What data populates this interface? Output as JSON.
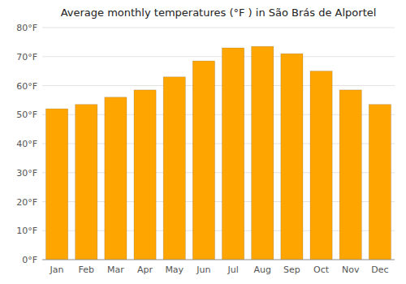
{
  "chart_data": {
    "type": "bar",
    "title": "Average monthly temperatures (°F ) in São Brás de Alportel",
    "categories": [
      "Jan",
      "Feb",
      "Mar",
      "Apr",
      "May",
      "Jun",
      "Jul",
      "Aug",
      "Sep",
      "Oct",
      "Nov",
      "Dec"
    ],
    "values": [
      52,
      53.5,
      56,
      58.5,
      63,
      68.5,
      73,
      73.5,
      71,
      65,
      58.5,
      53.5
    ],
    "color": "#FFA500",
    "ylim": [
      0,
      80
    ],
    "yticks": [
      {
        "value": 0,
        "label": "0°F"
      },
      {
        "value": 10,
        "label": "10°F"
      },
      {
        "value": 20,
        "label": "20°F"
      },
      {
        "value": 30,
        "label": "30°F"
      },
      {
        "value": 40,
        "label": "40°F"
      },
      {
        "value": 50,
        "label": "50°F"
      },
      {
        "value": 60,
        "label": "60°F"
      },
      {
        "value": 70,
        "label": "70°F"
      },
      {
        "value": 80,
        "label": "80°F"
      }
    ],
    "grid": true
  }
}
